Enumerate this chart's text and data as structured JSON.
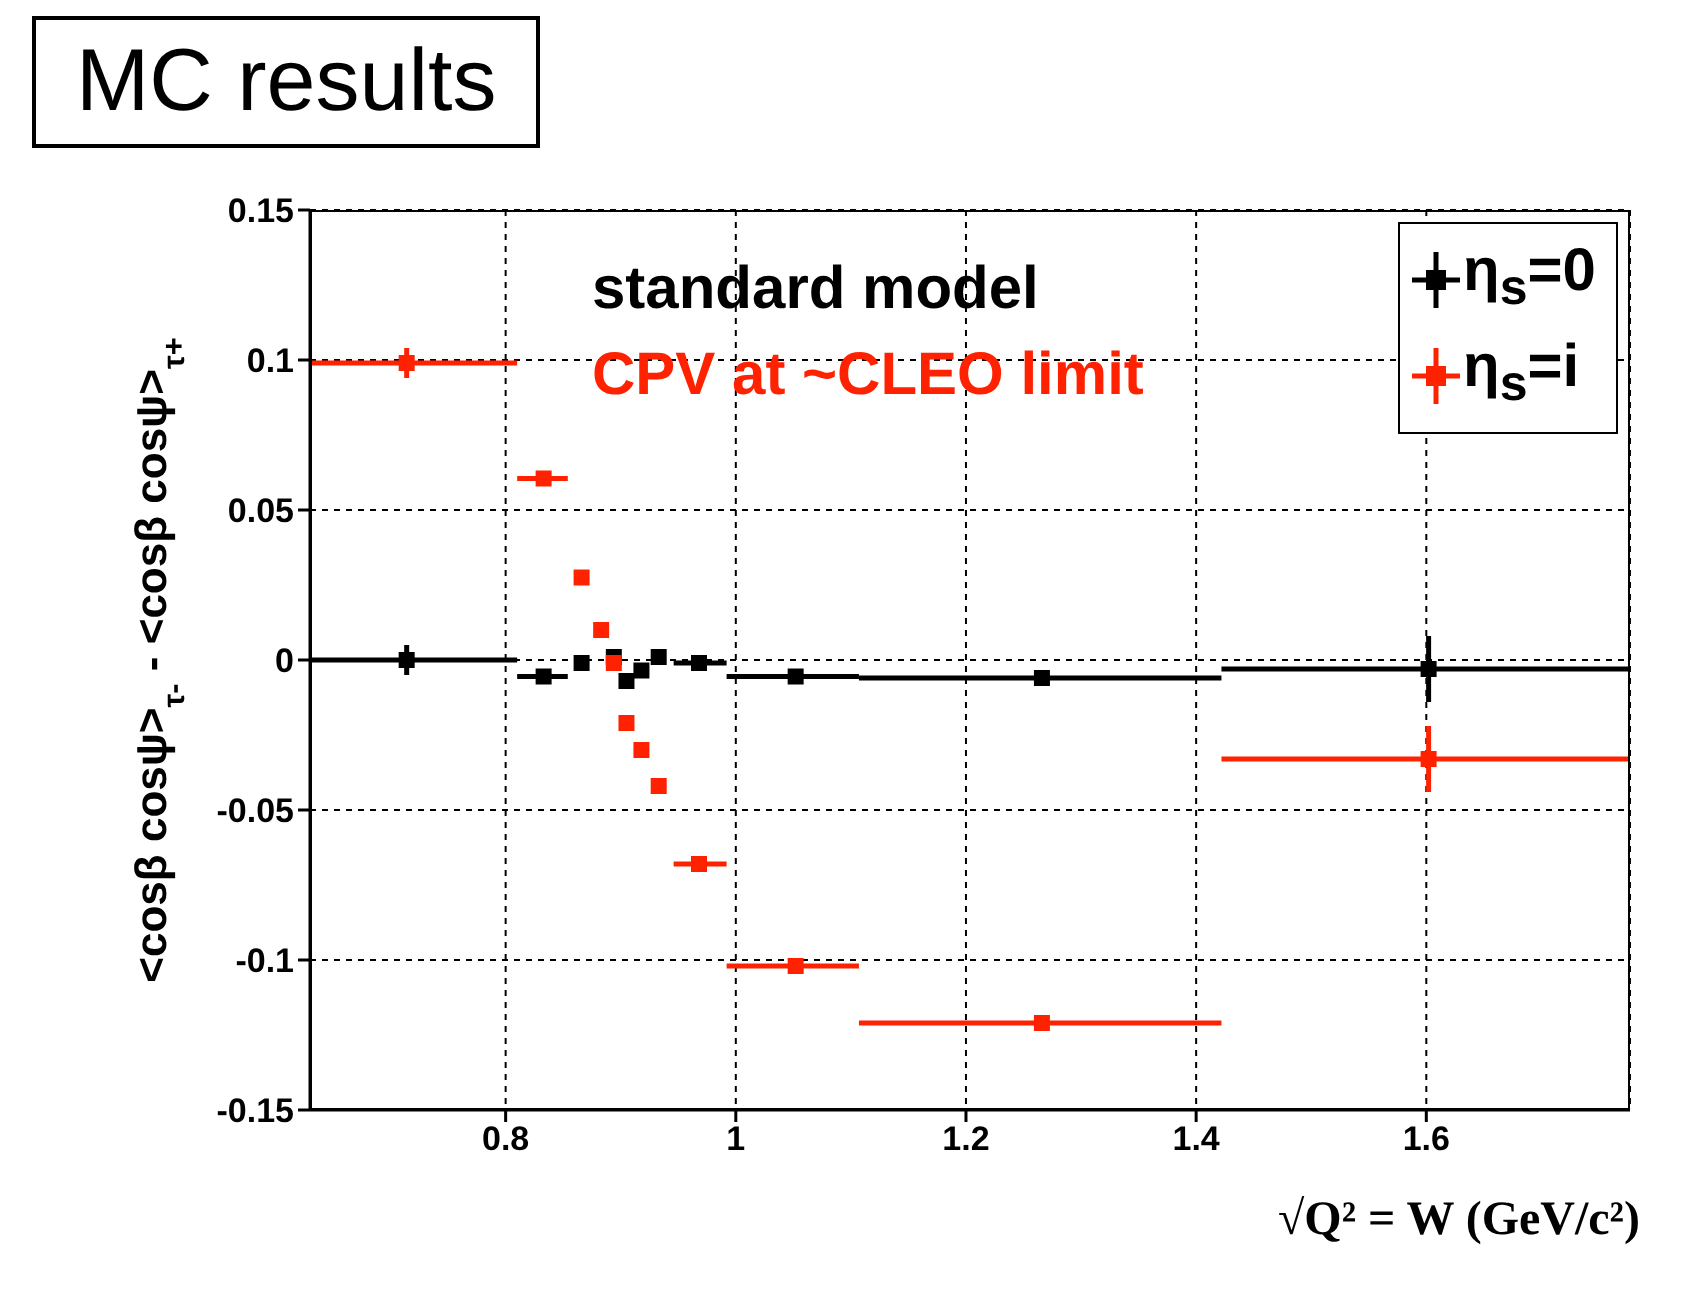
{
  "chart_data": {
    "type": "scatter",
    "title": "MC results",
    "xlabel": "√Q² = W (GeV/c²)",
    "ylabel": "<cosβ cosψ>$_{τ-}$ - <cosβ cosψ>$_{τ+}$",
    "annotations": [
      "standard model",
      "CPV at ~CLEO limit"
    ],
    "xlim": [
      0.63,
      1.777
    ],
    "xticks": [
      0.8,
      1,
      1.2,
      1.4,
      1.6
    ],
    "ylim": [
      -0.15,
      0.15
    ],
    "yticks": [
      -0.15,
      -0.1,
      -0.05,
      0,
      0.05,
      0.1,
      0.15
    ],
    "grid": true,
    "legend": "top right",
    "marker": "square",
    "series": [
      {
        "name": "η$_{s}$=0",
        "color": "#000000",
        "x": [
          0.714,
          0.833,
          0.866,
          0.894,
          0.905,
          0.918,
          0.933,
          0.968,
          1.052,
          1.266,
          1.602
        ],
        "values": [
          0,
          -0.0055,
          -0.001,
          0.001,
          -0.007,
          -0.0035,
          0.001,
          -0.001,
          -0.0055,
          -0.006,
          -0.003
        ],
        "errors": [
          0.005,
          null,
          null,
          null,
          null,
          null,
          null,
          null,
          null,
          null,
          0.011
        ],
        "xerrors": [
          [
            0.63,
            0.81
          ],
          [
            0.81,
            0.854
          ],
          null,
          null,
          null,
          null,
          null,
          [
            0.946,
            0.992
          ],
          [
            0.992,
            1.107
          ],
          [
            1.107,
            1.422
          ],
          [
            1.422,
            1.777
          ]
        ]
      },
      {
        "name": "η$_{s}$=i",
        "color": "#ff2200",
        "x": [
          0.714,
          0.833,
          0.866,
          0.883,
          0.894,
          0.905,
          0.918,
          0.933,
          0.968,
          1.052,
          1.266,
          1.602
        ],
        "values": [
          0.099,
          0.0605,
          0.0275,
          0.01,
          -0.001,
          -0.021,
          -0.03,
          -0.042,
          -0.068,
          -0.102,
          -0.121,
          -0.033
        ],
        "errors": [
          0.005,
          null,
          null,
          null,
          null,
          null,
          null,
          null,
          null,
          null,
          null,
          0.011
        ],
        "xerrors": [
          [
            0.63,
            0.81
          ],
          [
            0.81,
            0.854
          ],
          null,
          null,
          null,
          null,
          null,
          null,
          [
            0.946,
            0.992
          ],
          [
            0.992,
            1.107
          ],
          [
            1.107,
            1.422
          ],
          [
            1.422,
            1.777
          ]
        ]
      }
    ]
  }
}
